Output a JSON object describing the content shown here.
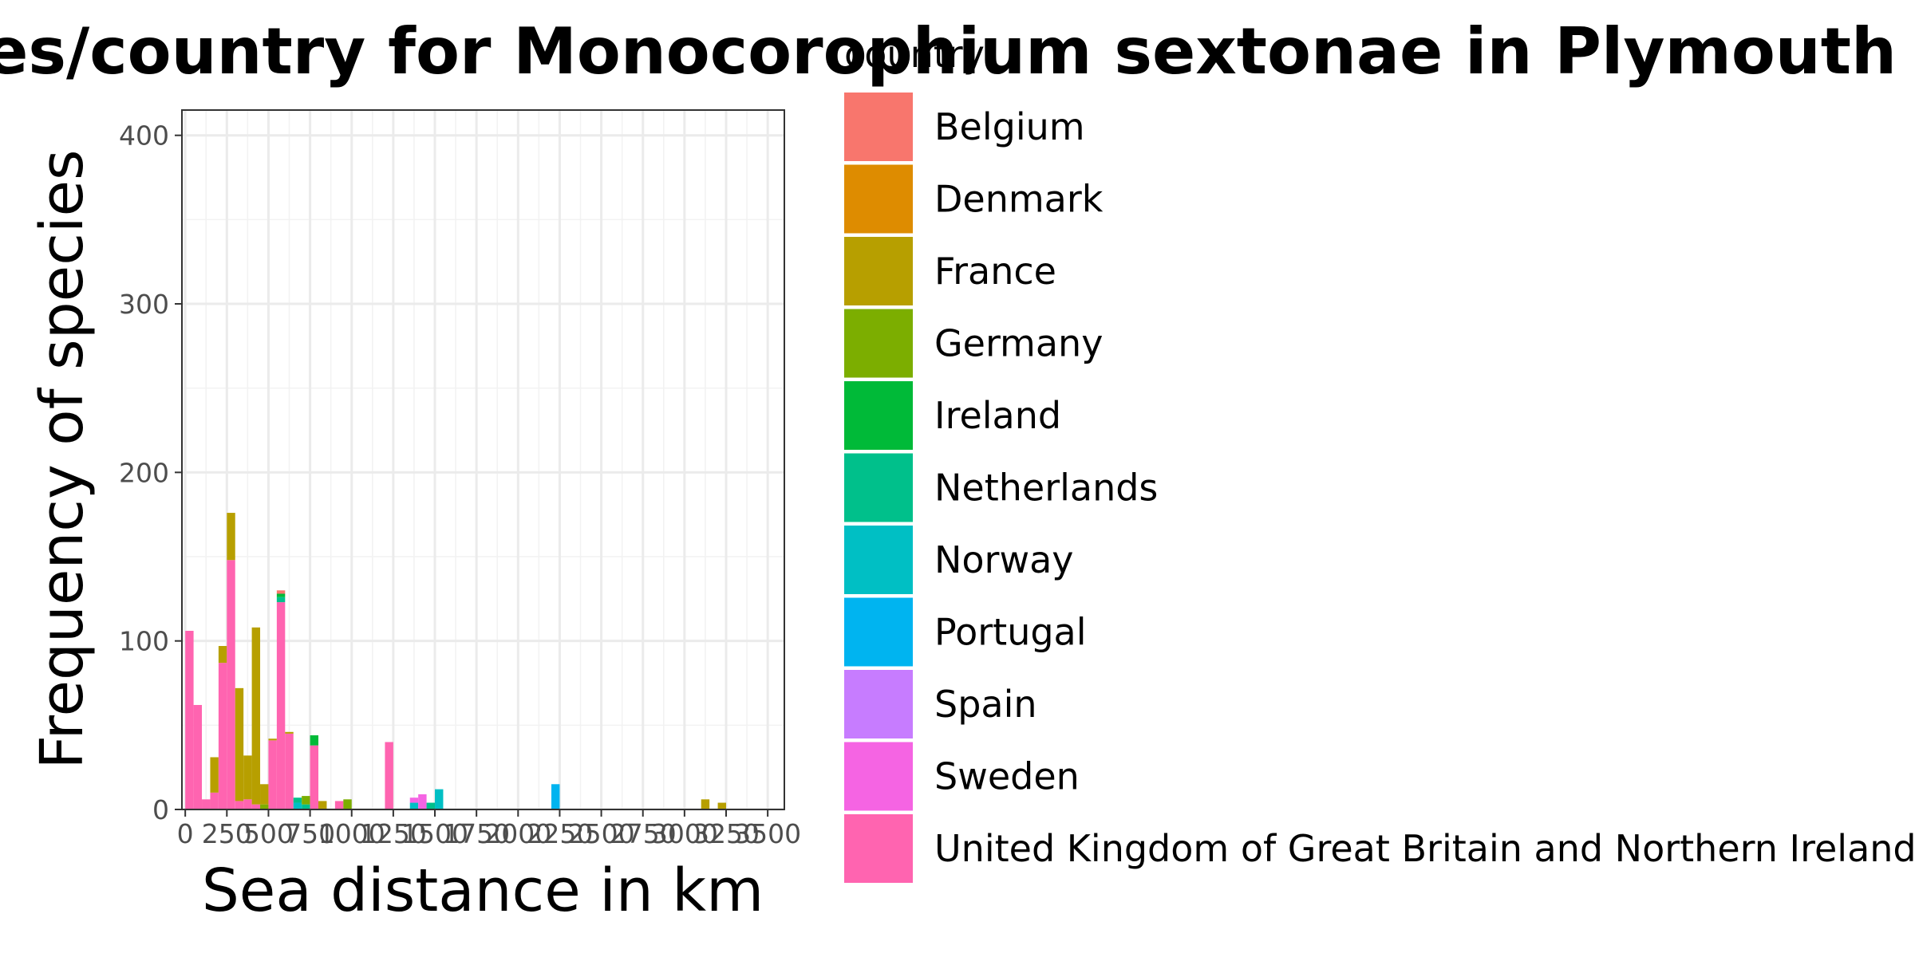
{
  "chart_data": {
    "type": "bar",
    "stacked": true,
    "title": "Distances/country for Monocorophium sextonae in Plymouth",
    "xlabel": "Sea distance in km",
    "ylabel": "Frequency of species",
    "xlim": [
      0,
      3500
    ],
    "ylim": [
      0,
      415
    ],
    "x_ticks": [
      0,
      250,
      500,
      750,
      1000,
      1250,
      1500,
      1750,
      2000,
      2250,
      2500,
      2750,
      3000,
      3250,
      3500
    ],
    "x_tick_labels": [
      "0",
      "250",
      "500",
      "750",
      "1000",
      "1250",
      "1500",
      "1750",
      "2000",
      "2250",
      "2500",
      "2750",
      "3000",
      "3250",
      "3500"
    ],
    "y_ticks": [
      0,
      100,
      200,
      300,
      400
    ],
    "y_tick_labels": [
      "0",
      "100",
      "200",
      "300",
      "400"
    ],
    "grid": true,
    "bin_width": 50,
    "legend": {
      "title": "country",
      "position": "right",
      "entries": [
        {
          "name": "Belgium",
          "color": "#F8766D"
        },
        {
          "name": "Denmark",
          "color": "#DE8C00"
        },
        {
          "name": "France",
          "color": "#B79F00"
        },
        {
          "name": "Germany",
          "color": "#7CAE00"
        },
        {
          "name": "Ireland",
          "color": "#00BA38"
        },
        {
          "name": "Netherlands",
          "color": "#00C08B"
        },
        {
          "name": "Norway",
          "color": "#00BFC4"
        },
        {
          "name": "Portugal",
          "color": "#00B4F0"
        },
        {
          "name": "Spain",
          "color": "#C77CFF"
        },
        {
          "name": "Sweden",
          "color": "#F564E3"
        },
        {
          "name": "United Kingdom of Great Britain and Northern Ireland",
          "color": "#FF64B0"
        }
      ]
    },
    "bins": [
      {
        "x0": 0,
        "segments": [
          {
            "country": "United Kingdom of Great Britain and Northern Ireland",
            "value": 106
          }
        ]
      },
      {
        "x0": 50,
        "segments": [
          {
            "country": "United Kingdom of Great Britain and Northern Ireland",
            "value": 62
          }
        ]
      },
      {
        "x0": 100,
        "segments": [
          {
            "country": "United Kingdom of Great Britain and Northern Ireland",
            "value": 6
          }
        ]
      },
      {
        "x0": 150,
        "segments": [
          {
            "country": "United Kingdom of Great Britain and Northern Ireland",
            "value": 10
          },
          {
            "country": "France",
            "value": 21
          }
        ]
      },
      {
        "x0": 200,
        "segments": [
          {
            "country": "United Kingdom of Great Britain and Northern Ireland",
            "value": 87
          },
          {
            "country": "France",
            "value": 10
          }
        ]
      },
      {
        "x0": 250,
        "segments": [
          {
            "country": "United Kingdom of Great Britain and Northern Ireland",
            "value": 148
          },
          {
            "country": "France",
            "value": 28
          }
        ]
      },
      {
        "x0": 300,
        "segments": [
          {
            "country": "United Kingdom of Great Britain and Northern Ireland",
            "value": 5
          },
          {
            "country": "France",
            "value": 67
          }
        ]
      },
      {
        "x0": 350,
        "segments": [
          {
            "country": "United Kingdom of Great Britain and Northern Ireland",
            "value": 6
          },
          {
            "country": "France",
            "value": 26
          }
        ]
      },
      {
        "x0": 400,
        "segments": [
          {
            "country": "United Kingdom of Great Britain and Northern Ireland",
            "value": 3
          },
          {
            "country": "France",
            "value": 105
          }
        ]
      },
      {
        "x0": 450,
        "segments": [
          {
            "country": "Germany",
            "value": 3
          },
          {
            "country": "France",
            "value": 12
          }
        ]
      },
      {
        "x0": 500,
        "segments": [
          {
            "country": "United Kingdom of Great Britain and Northern Ireland",
            "value": 41
          },
          {
            "country": "France",
            "value": 1
          }
        ]
      },
      {
        "x0": 550,
        "segments": [
          {
            "country": "United Kingdom of Great Britain and Northern Ireland",
            "value": 123
          },
          {
            "country": "Netherlands",
            "value": 3
          },
          {
            "country": "Ireland",
            "value": 2
          },
          {
            "country": "Belgium",
            "value": 2
          }
        ]
      },
      {
        "x0": 600,
        "segments": [
          {
            "country": "United Kingdom of Great Britain and Northern Ireland",
            "value": 45
          },
          {
            "country": "France",
            "value": 1
          }
        ]
      },
      {
        "x0": 650,
        "segments": [
          {
            "country": "Norway",
            "value": 4
          },
          {
            "country": "Netherlands",
            "value": 3
          }
        ]
      },
      {
        "x0": 700,
        "segments": [
          {
            "country": "Netherlands",
            "value": 3
          },
          {
            "country": "Germany",
            "value": 5
          }
        ]
      },
      {
        "x0": 750,
        "segments": [
          {
            "country": "United Kingdom of Great Britain and Northern Ireland",
            "value": 38
          },
          {
            "country": "Ireland",
            "value": 6
          }
        ]
      },
      {
        "x0": 800,
        "segments": [
          {
            "country": "France",
            "value": 5
          }
        ]
      },
      {
        "x0": 900,
        "segments": [
          {
            "country": "United Kingdom of Great Britain and Northern Ireland",
            "value": 5
          }
        ]
      },
      {
        "x0": 950,
        "segments": [
          {
            "country": "Germany",
            "value": 6
          }
        ]
      },
      {
        "x0": 1200,
        "segments": [
          {
            "country": "United Kingdom of Great Britain and Northern Ireland",
            "value": 40
          }
        ]
      },
      {
        "x0": 1350,
        "segments": [
          {
            "country": "Norway",
            "value": 4
          },
          {
            "country": "Sweden",
            "value": 3
          }
        ]
      },
      {
        "x0": 1400,
        "segments": [
          {
            "country": "Sweden",
            "value": 9
          }
        ]
      },
      {
        "x0": 1450,
        "segments": [
          {
            "country": "Netherlands",
            "value": 4
          }
        ]
      },
      {
        "x0": 1500,
        "segments": [
          {
            "country": "Norway",
            "value": 12
          }
        ]
      },
      {
        "x0": 2200,
        "segments": [
          {
            "country": "Portugal",
            "value": 15
          }
        ]
      },
      {
        "x0": 3100,
        "segments": [
          {
            "country": "France",
            "value": 6
          }
        ]
      },
      {
        "x0": 3200,
        "segments": [
          {
            "country": "France",
            "value": 4
          }
        ]
      }
    ]
  }
}
